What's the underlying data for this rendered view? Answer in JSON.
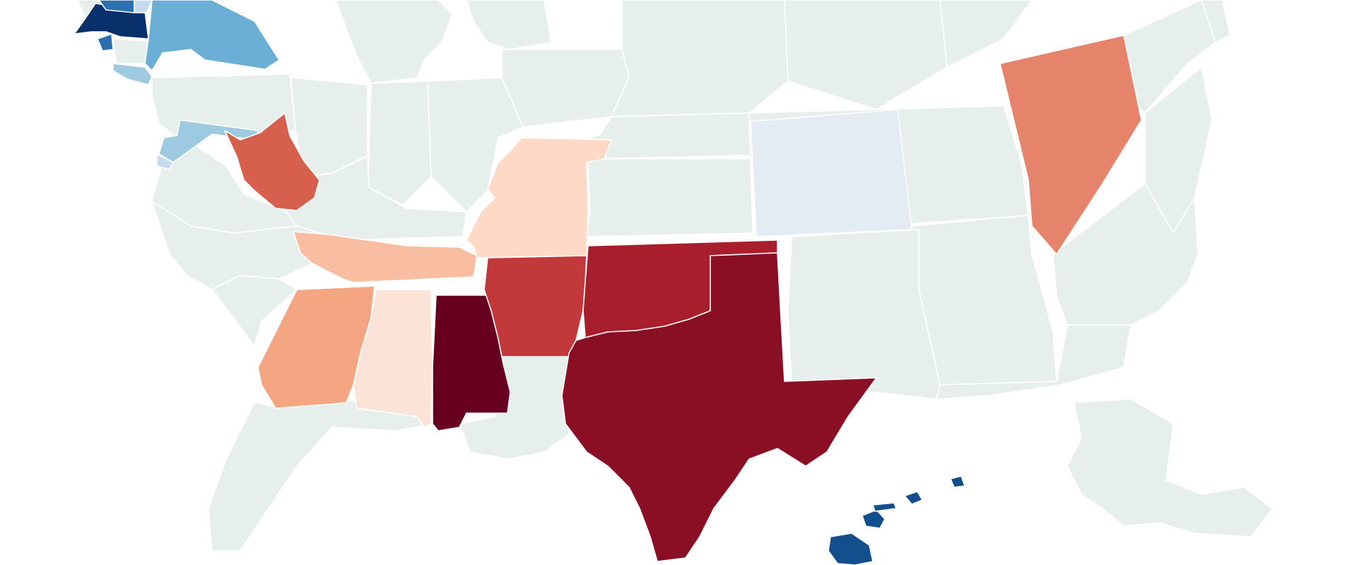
{
  "map": {
    "view": "us-choropleth-mirrored-crop",
    "background": "#ffffff",
    "default_state_color": "#e6efeb",
    "border_color": "#ffffff",
    "states": [
      {
        "id": "massachusetts",
        "color": "#08306b"
      },
      {
        "id": "vermont",
        "color": "#2c6fb0"
      },
      {
        "id": "new-hampshire",
        "color": "#c6dbef"
      },
      {
        "id": "rhode-island",
        "color": "#2c6fb0"
      },
      {
        "id": "connecticut",
        "color": "#e6efeb"
      },
      {
        "id": "new-york",
        "color": "#6baed6"
      },
      {
        "id": "new-jersey",
        "color": "#9ecae1"
      },
      {
        "id": "maryland",
        "color": "#9ecae1"
      },
      {
        "id": "delaware",
        "color": "#c6dbef"
      },
      {
        "id": "west-virginia",
        "color": "#d6604d"
      },
      {
        "id": "tennessee",
        "color": "#f9bda2"
      },
      {
        "id": "georgia",
        "color": "#f4a582"
      },
      {
        "id": "alabama",
        "color": "#fbe3d8"
      },
      {
        "id": "mississippi",
        "color": "#67001f"
      },
      {
        "id": "missouri",
        "color": "#fdd9c6"
      },
      {
        "id": "arkansas",
        "color": "#c1393b"
      },
      {
        "id": "oklahoma",
        "color": "#a81e2d"
      },
      {
        "id": "texas",
        "color": "#8a0e24"
      },
      {
        "id": "colorado",
        "color": "#e3ecf3"
      },
      {
        "id": "nevada",
        "color": "#e5846a"
      },
      {
        "id": "hawaii",
        "color": "#124f8c"
      },
      {
        "id": "alaska",
        "color": "#e6efeb"
      }
    ]
  }
}
